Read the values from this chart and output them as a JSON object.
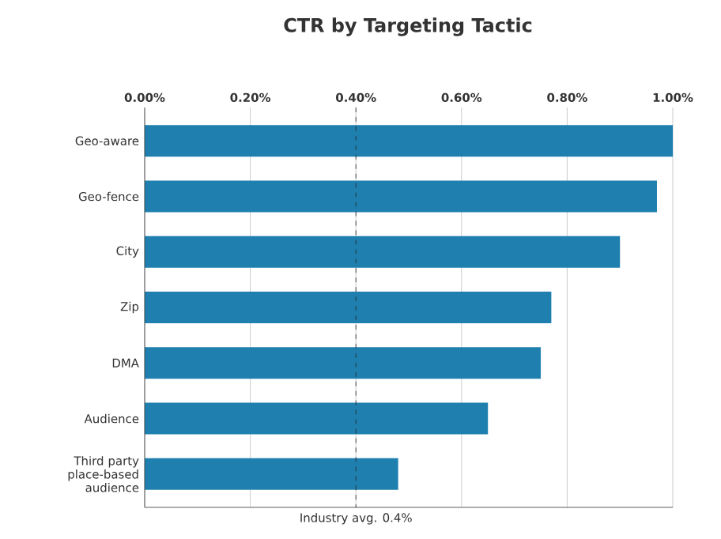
{
  "chart_data": {
    "type": "bar",
    "orientation": "horizontal",
    "title": "CTR by Targeting Tactic",
    "categories": [
      "Geo-aware",
      "Geo-fence",
      "City",
      "Zip",
      "DMA",
      "Audience",
      "Third party place-based audience"
    ],
    "values": [
      1.0,
      0.97,
      0.9,
      0.77,
      0.75,
      0.65,
      0.48
    ],
    "color": "#1f80b0",
    "xlim": [
      0,
      1.0
    ],
    "xticks": [
      {
        "value": 0,
        "label": "0.00%"
      },
      {
        "value": 0.2,
        "label": "0.20%"
      },
      {
        "value": 0.4,
        "label": "0.40%"
      },
      {
        "value": 0.6,
        "label": "0.60%"
      },
      {
        "value": 0.8,
        "label": "0.80%"
      },
      {
        "value": 1.0,
        "label": "1.00%"
      }
    ],
    "grid": "x",
    "ref_lines": [
      {
        "axis": "x",
        "value": 0.4,
        "label": "Industry avg. 0.4%",
        "color": "#222222",
        "line_style": "dashed"
      }
    ]
  }
}
